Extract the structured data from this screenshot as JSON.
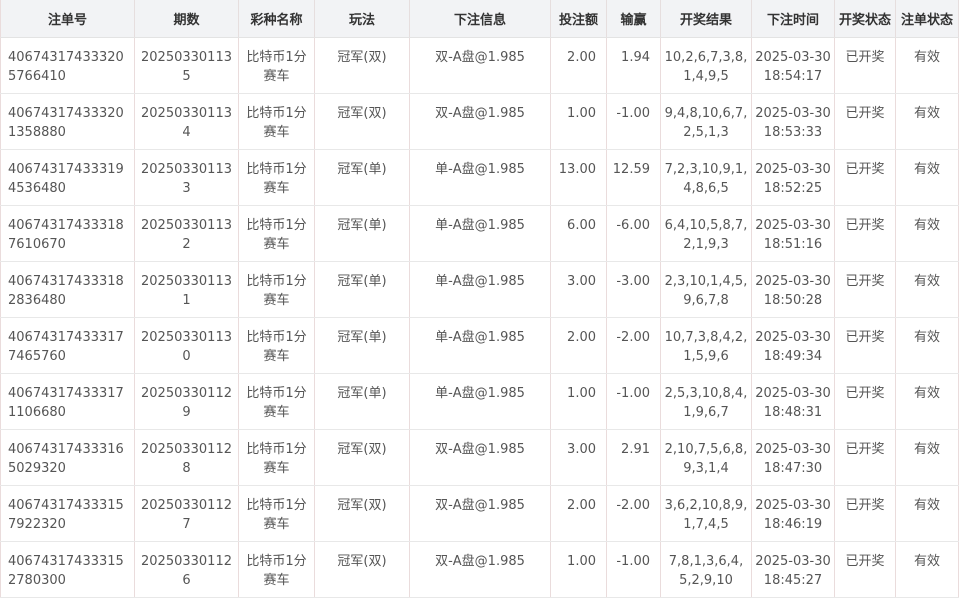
{
  "table": {
    "headers": [
      "注单号",
      "期数",
      "彩种名称",
      "玩法",
      "下注信息",
      "投注额",
      "输赢",
      "开奖结果",
      "下注时间",
      "开奖状态",
      "注单状态"
    ],
    "rows": [
      [
        "406743174333205766410",
        "202503301135",
        "比特币1分赛车",
        "冠军(双)",
        "双-A盘@1.985",
        "2.00",
        "1.94",
        "10,2,6,7,3,8,1,4,9,5",
        "2025-03-30 18:54:17",
        "已开奖",
        "有效"
      ],
      [
        "406743174333201358880",
        "202503301134",
        "比特币1分赛车",
        "冠军(双)",
        "双-A盘@1.985",
        "1.00",
        "-1.00",
        "9,4,8,10,6,7,2,5,1,3",
        "2025-03-30 18:53:33",
        "已开奖",
        "有效"
      ],
      [
        "406743174333194536480",
        "202503301133",
        "比特币1分赛车",
        "冠军(单)",
        "单-A盘@1.985",
        "13.00",
        "12.59",
        "7,2,3,10,9,1,4,8,6,5",
        "2025-03-30 18:52:25",
        "已开奖",
        "有效"
      ],
      [
        "406743174333187610670",
        "202503301132",
        "比特币1分赛车",
        "冠军(单)",
        "单-A盘@1.985",
        "6.00",
        "-6.00",
        "6,4,10,5,8,7,2,1,9,3",
        "2025-03-30 18:51:16",
        "已开奖",
        "有效"
      ],
      [
        "406743174333182836480",
        "202503301131",
        "比特币1分赛车",
        "冠军(单)",
        "单-A盘@1.985",
        "3.00",
        "-3.00",
        "2,3,10,1,4,5,9,6,7,8",
        "2025-03-30 18:50:28",
        "已开奖",
        "有效"
      ],
      [
        "406743174333177465760",
        "202503301130",
        "比特币1分赛车",
        "冠军(单)",
        "单-A盘@1.985",
        "2.00",
        "-2.00",
        "10,7,3,8,4,2,1,5,9,6",
        "2025-03-30 18:49:34",
        "已开奖",
        "有效"
      ],
      [
        "406743174333171106680",
        "202503301129",
        "比特币1分赛车",
        "冠军(单)",
        "单-A盘@1.985",
        "1.00",
        "-1.00",
        "2,5,3,10,8,4,1,9,6,7",
        "2025-03-30 18:48:31",
        "已开奖",
        "有效"
      ],
      [
        "406743174333165029320",
        "202503301128",
        "比特币1分赛车",
        "冠军(双)",
        "双-A盘@1.985",
        "3.00",
        "2.91",
        "2,10,7,5,6,8,9,3,1,4",
        "2025-03-30 18:47:30",
        "已开奖",
        "有效"
      ],
      [
        "406743174333157922320",
        "202503301127",
        "比特币1分赛车",
        "冠军(双)",
        "双-A盘@1.985",
        "2.00",
        "-2.00",
        "3,6,2,10,8,9,1,7,4,5",
        "2025-03-30 18:46:19",
        "已开奖",
        "有效"
      ],
      [
        "406743174333152780300",
        "202503301126",
        "比特币1分赛车",
        "冠军(双)",
        "双-A盘@1.985",
        "1.00",
        "-1.00",
        "7,8,1,3,6,4,5,2,9,10",
        "2025-03-30 18:45:27",
        "已开奖",
        "有效"
      ]
    ]
  }
}
